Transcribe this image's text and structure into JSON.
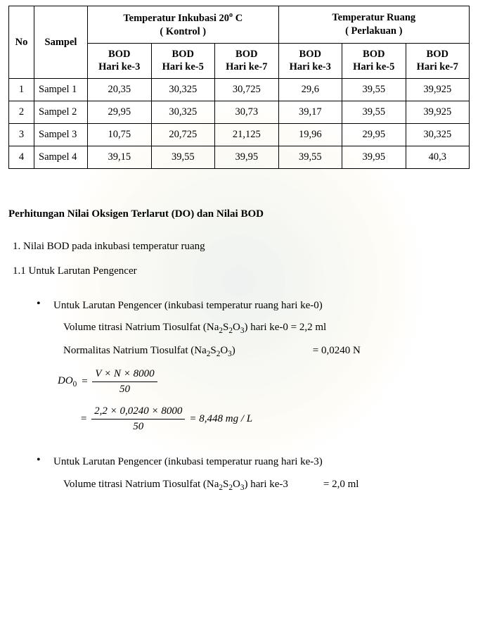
{
  "table": {
    "col_no": "No",
    "col_sampel": "Sampel",
    "grp_kontrol_line1": "Temperatur Inkubasi 20",
    "grp_kontrol_sup": "o",
    "grp_kontrol_tail": " C",
    "grp_kontrol_line2": "( Kontrol )",
    "grp_ruang_line1": "Temperatur Ruang",
    "grp_ruang_line2": "( Perlakuan )",
    "sub_bod3_l1": "BOD",
    "sub_bod3_l2": "Hari ke-3",
    "sub_bod5_l1": "BOD",
    "sub_bod5_l2": "Hari ke-5",
    "sub_bod7_l1": "BOD",
    "sub_bod7_l2": "Hari ke-7",
    "rows": [
      {
        "no": "1",
        "sampel": "Sampel 1",
        "k3": "20,35",
        "k5": "30,325",
        "k7": "30,725",
        "r3": "29,6",
        "r5": "39,55",
        "r7": "39,925"
      },
      {
        "no": "2",
        "sampel": "Sampel 2",
        "k3": "29,95",
        "k5": "30,325",
        "k7": "30,73",
        "r3": "39,17",
        "r5": "39,55",
        "r7": "39,925"
      },
      {
        "no": "3",
        "sampel": "Sampel 3",
        "k3": "10,75",
        "k5": "20,725",
        "k7": "21,125",
        "r3": "19,96",
        "r5": "29,95",
        "r7": "30,325"
      },
      {
        "no": "4",
        "sampel": "Sampel 4",
        "k3": "39,15",
        "k5": "39,55",
        "k7": "39,95",
        "r3": "39,55",
        "r5": "39,95",
        "r7": "40,3"
      }
    ]
  },
  "heading": "Perhitungan Nilai Oksigen Terlarut (DO) dan Nilai BOD",
  "line1": "1. Nilai BOD pada inkubasi temperatur ruang",
  "line2": "1.1 Untuk Larutan Pengencer",
  "bullet1_title": "Untuk Larutan Pengencer (inkubasi temperatur ruang hari ke-0)",
  "bullet1_vol_label": "Volume titrasi Natrium Tiosulfat (Na",
  "bullet1_vol_tail": ") hari ke-0   =  2,2 ml",
  "bullet1_norm_label": " Normalitas Natrium Tiosulfat (Na",
  "bullet1_norm_tail": ")",
  "bullet1_norm_val": "=  0,0240 N",
  "eq1_lhs": "DO",
  "eq1_sub": "0",
  "eq1_num": "V × N × 8000",
  "eq1_den": "50",
  "eq2_num": "2,2 × 0,0240 × 8000",
  "eq2_den": "50",
  "eq2_rhs": "= 8,448 mg / L",
  "bullet2_title": "Untuk Larutan Pengencer (inkubasi temperatur ruang hari ke-3)",
  "bullet2_vol_label": "Volume titrasi Natrium Tiosulfat (Na",
  "bullet2_vol_tail": ") hari ke-3",
  "bullet2_vol_val": "=  2,0 ml",
  "chem_s": "S",
  "chem_o": "O",
  "chem_2": "2",
  "chem_3": "3"
}
